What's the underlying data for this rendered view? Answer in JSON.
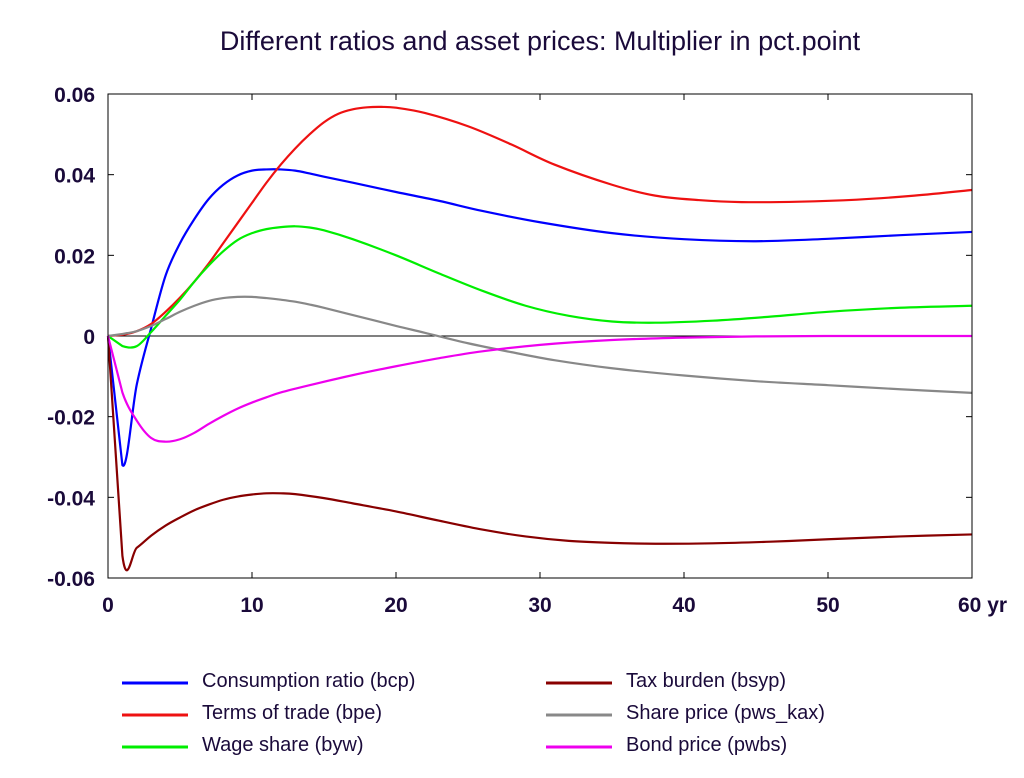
{
  "chart_data": {
    "type": "line",
    "title": "Different ratios and asset prices: Multiplier in pct.point",
    "xlabel": "",
    "ylabel": "",
    "x_unit": "yr",
    "xlim": [
      0,
      60
    ],
    "ylim": [
      -0.06,
      0.06
    ],
    "x_ticks": [
      0,
      10,
      20,
      30,
      40,
      50,
      60
    ],
    "x_tick_labels": [
      "0",
      "10",
      "20",
      "30",
      "40",
      "50",
      "60 yr"
    ],
    "y_ticks": [
      -0.06,
      -0.04,
      -0.02,
      0,
      0.02,
      0.04,
      0.06
    ],
    "y_tick_labels": [
      "-0.06",
      "-0.04",
      "-0.02",
      "0",
      "0.02",
      "0.04",
      "0.06"
    ],
    "grid": false,
    "legend_position": "bottom",
    "series": [
      {
        "name": "Consumption ratio (bcp)",
        "color": "#0000ff",
        "points": [
          [
            0,
            0
          ],
          [
            1,
            -0.032
          ],
          [
            2,
            -0.012
          ],
          [
            3,
            0.002
          ],
          [
            4,
            0.015
          ],
          [
            5,
            0.023
          ],
          [
            6,
            0.029
          ],
          [
            7,
            0.034
          ],
          [
            8,
            0.0375
          ],
          [
            9,
            0.0398
          ],
          [
            10,
            0.041
          ],
          [
            11,
            0.0413
          ],
          [
            12,
            0.0413
          ],
          [
            13,
            0.041
          ],
          [
            14,
            0.0403
          ],
          [
            15,
            0.0395
          ],
          [
            17,
            0.038
          ],
          [
            20,
            0.0357
          ],
          [
            23,
            0.0335
          ],
          [
            26,
            0.031
          ],
          [
            30,
            0.0282
          ],
          [
            35,
            0.0255
          ],
          [
            40,
            0.024
          ],
          [
            45,
            0.0235
          ],
          [
            50,
            0.0241
          ],
          [
            55,
            0.025
          ],
          [
            60,
            0.0258
          ]
        ]
      },
      {
        "name": "Terms of trade (bpe)",
        "color": "#ee1111",
        "points": [
          [
            0,
            0
          ],
          [
            1,
            0.0003
          ],
          [
            2,
            0.0012
          ],
          [
            3,
            0.003
          ],
          [
            4,
            0.006
          ],
          [
            5,
            0.0095
          ],
          [
            6,
            0.0135
          ],
          [
            7,
            0.018
          ],
          [
            8,
            0.023
          ],
          [
            9,
            0.028
          ],
          [
            10,
            0.033
          ],
          [
            11,
            0.038
          ],
          [
            12,
            0.0425
          ],
          [
            13,
            0.0465
          ],
          [
            14,
            0.05
          ],
          [
            15,
            0.053
          ],
          [
            16,
            0.0551
          ],
          [
            17,
            0.0562
          ],
          [
            18,
            0.0567
          ],
          [
            19,
            0.0568
          ],
          [
            20,
            0.0566
          ],
          [
            22,
            0.0553
          ],
          [
            25,
            0.052
          ],
          [
            28,
            0.0475
          ],
          [
            31,
            0.0425
          ],
          [
            35,
            0.0375
          ],
          [
            38,
            0.0348
          ],
          [
            41,
            0.0337
          ],
          [
            44,
            0.0332
          ],
          [
            48,
            0.0333
          ],
          [
            52,
            0.0338
          ],
          [
            56,
            0.0348
          ],
          [
            60,
            0.0362
          ]
        ]
      },
      {
        "name": "Wage share (byw)",
        "color": "#00ee00",
        "points": [
          [
            0,
            0
          ],
          [
            1,
            -0.0025
          ],
          [
            2,
            -0.0025
          ],
          [
            3,
            0.001
          ],
          [
            4,
            0.005
          ],
          [
            5,
            0.009
          ],
          [
            6,
            0.0135
          ],
          [
            7,
            0.0175
          ],
          [
            8,
            0.021
          ],
          [
            9,
            0.0238
          ],
          [
            10,
            0.0255
          ],
          [
            11,
            0.0265
          ],
          [
            12,
            0.027
          ],
          [
            13,
            0.0272
          ],
          [
            14,
            0.0269
          ],
          [
            15,
            0.0262
          ],
          [
            17,
            0.024
          ],
          [
            20,
            0.02
          ],
          [
            23,
            0.0155
          ],
          [
            26,
            0.0112
          ],
          [
            29,
            0.0075
          ],
          [
            32,
            0.005
          ],
          [
            35,
            0.0036
          ],
          [
            38,
            0.0033
          ],
          [
            42,
            0.0038
          ],
          [
            46,
            0.0048
          ],
          [
            50,
            0.006
          ],
          [
            55,
            0.007
          ],
          [
            60,
            0.0075
          ]
        ]
      },
      {
        "name": "Tax burden (bsyp)",
        "color": "#880000",
        "points": [
          [
            0,
            0
          ],
          [
            1,
            -0.0545
          ],
          [
            2,
            -0.0525
          ],
          [
            3,
            -0.0495
          ],
          [
            4,
            -0.047
          ],
          [
            5,
            -0.045
          ],
          [
            6,
            -0.0432
          ],
          [
            7,
            -0.0418
          ],
          [
            8,
            -0.0406
          ],
          [
            9,
            -0.0398
          ],
          [
            10,
            -0.0393
          ],
          [
            11,
            -0.039
          ],
          [
            12,
            -0.039
          ],
          [
            13,
            -0.0392
          ],
          [
            15,
            -0.0402
          ],
          [
            17,
            -0.0415
          ],
          [
            20,
            -0.0435
          ],
          [
            23,
            -0.0458
          ],
          [
            26,
            -0.048
          ],
          [
            29,
            -0.0497
          ],
          [
            32,
            -0.0508
          ],
          [
            35,
            -0.0513
          ],
          [
            38,
            -0.0515
          ],
          [
            42,
            -0.0514
          ],
          [
            46,
            -0.051
          ],
          [
            50,
            -0.0504
          ],
          [
            55,
            -0.0497
          ],
          [
            60,
            -0.0492
          ]
        ]
      },
      {
        "name": "Share price (pws_kax)",
        "color": "#888888",
        "points": [
          [
            0,
            0
          ],
          [
            1,
            0.0005
          ],
          [
            2,
            0.0012
          ],
          [
            3,
            0.0025
          ],
          [
            4,
            0.0042
          ],
          [
            5,
            0.006
          ],
          [
            6,
            0.0075
          ],
          [
            7,
            0.0087
          ],
          [
            8,
            0.0094
          ],
          [
            9,
            0.0097
          ],
          [
            10,
            0.0097
          ],
          [
            11,
            0.0094
          ],
          [
            12,
            0.009
          ],
          [
            13,
            0.0085
          ],
          [
            14,
            0.0078
          ],
          [
            15,
            0.007
          ],
          [
            17,
            0.0052
          ],
          [
            20,
            0.0025
          ],
          [
            22,
            0.0008
          ],
          [
            25,
            -0.0018
          ],
          [
            28,
            -0.004
          ],
          [
            31,
            -0.006
          ],
          [
            35,
            -0.008
          ],
          [
            40,
            -0.0098
          ],
          [
            45,
            -0.0112
          ],
          [
            50,
            -0.0122
          ],
          [
            55,
            -0.0132
          ],
          [
            60,
            -0.0141
          ]
        ]
      },
      {
        "name": "Bond price (pwbs)",
        "color": "#ee00ee",
        "points": [
          [
            0,
            0
          ],
          [
            1,
            -0.014
          ],
          [
            2,
            -0.021
          ],
          [
            3,
            -0.0253
          ],
          [
            4,
            -0.0262
          ],
          [
            5,
            -0.0256
          ],
          [
            6,
            -0.024
          ],
          [
            7,
            -0.0218
          ],
          [
            8,
            -0.0198
          ],
          [
            9,
            -0.018
          ],
          [
            10,
            -0.0165
          ],
          [
            11,
            -0.0152
          ],
          [
            12,
            -0.014
          ],
          [
            14,
            -0.0122
          ],
          [
            17,
            -0.0097
          ],
          [
            20,
            -0.0075
          ],
          [
            23,
            -0.0055
          ],
          [
            26,
            -0.0038
          ],
          [
            30,
            -0.0022
          ],
          [
            35,
            -0.001
          ],
          [
            40,
            -0.0004
          ],
          [
            45,
            -0.0001
          ],
          [
            50,
            0
          ],
          [
            55,
            0
          ],
          [
            60,
            0
          ]
        ]
      }
    ]
  }
}
